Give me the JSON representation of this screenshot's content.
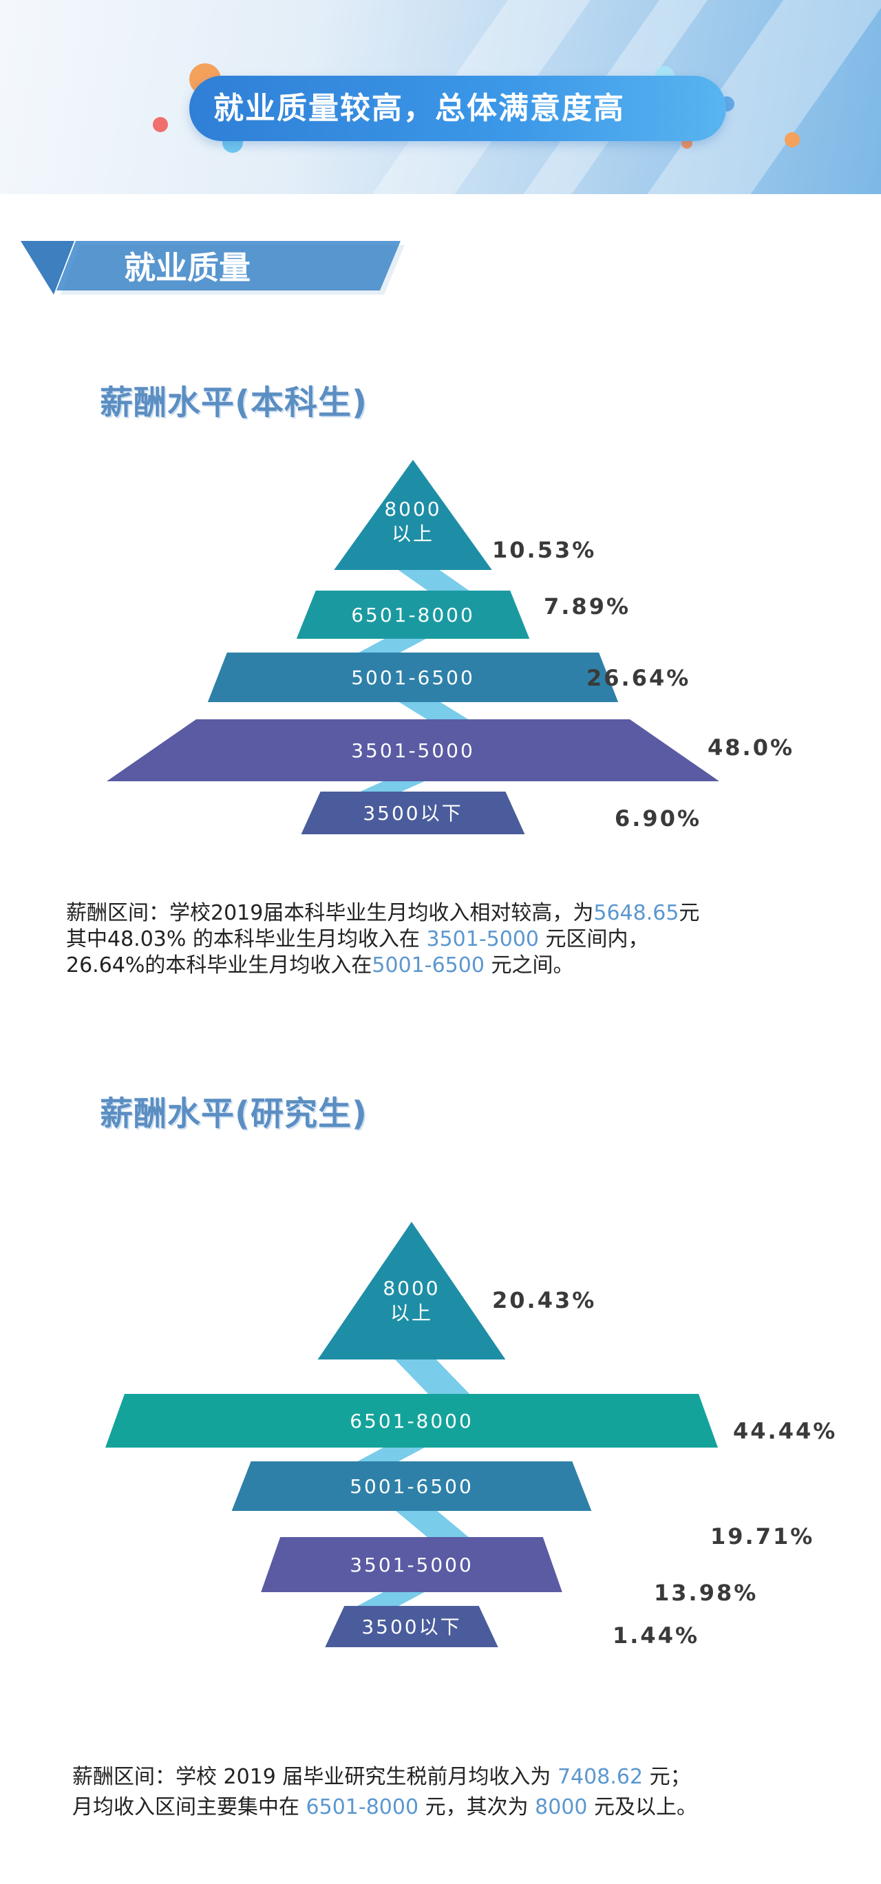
{
  "banner": {
    "title": "就业质量较高，总体满意度高"
  },
  "section": {
    "heading": "就业质量"
  },
  "undergrad": {
    "heading": "薪酬水平(本科生)",
    "paragraph": {
      "l1a": "薪酬区间：学校2019届本科毕业生月均收入相对较高，为",
      "l1b": "5648.65",
      "l1c": "元",
      "l2a": "其中48.03% 的本科毕业生月均收入在 ",
      "l2b": "3501-5000",
      "l2c": " 元区间内，",
      "l3a": "26.64%的本科毕业生月均收入在",
      "l3b": "5001-6500",
      "l3c": " 元之间。"
    }
  },
  "graduate": {
    "heading": "薪酬水平(研究生)",
    "paragraph": {
      "l1a": "薪酬区间：学校 2019 届毕业研究生税前月均收入为 ",
      "l1b": "7408.62",
      "l1c": " 元；",
      "l2a": "月均收入区间主要集中在 ",
      "l2b": "6501-8000",
      "l2c": " 元，其次为 ",
      "l2d": "8000",
      "l2e": " 元及以上。"
    }
  },
  "chart_data": [
    {
      "type": "bar",
      "categories": [
        "8000以上",
        "6501-8000",
        "5001-6500",
        "3501-5000",
        "3500以下"
      ],
      "category_display": [
        [
          "8000",
          "以上"
        ],
        [
          "6501-8000"
        ],
        [
          "5001-6500"
        ],
        [
          "3501-5000"
        ],
        [
          "3500以下"
        ]
      ],
      "values": [
        10.53,
        7.89,
        26.64,
        48.0,
        6.9
      ],
      "value_labels": [
        "10.53%",
        "7.89%",
        "26.64%",
        "48.0%",
        "6.90%"
      ],
      "colors": [
        "#1e8ea6",
        "#1a9aa0",
        "#2e80a8",
        "#5a5ba3",
        "#4a5c9c"
      ]
    },
    {
      "type": "bar",
      "categories": [
        "8000以上",
        "6501-8000",
        "5001-6500",
        "3501-5000",
        "3500以下"
      ],
      "category_display": [
        [
          "8000",
          "以上"
        ],
        [
          "6501-8000"
        ],
        [
          "5001-6500"
        ],
        [
          "3501-5000"
        ],
        [
          "3500以下"
        ]
      ],
      "values": [
        20.43,
        44.44,
        19.71,
        13.98,
        1.44
      ],
      "value_labels": [
        "20.43%",
        "44.44%",
        "19.71%",
        "13.98%",
        "1.44%"
      ],
      "colors": [
        "#1e8ea6",
        "#14a39a",
        "#2e80a8",
        "#5a5ba3",
        "#4a5c9c"
      ]
    }
  ]
}
